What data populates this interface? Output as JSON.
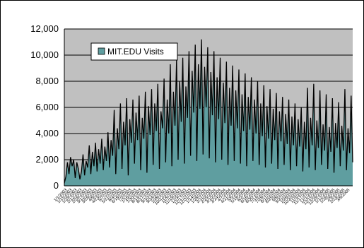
{
  "chart_data": {
    "type": "area",
    "title": "",
    "xlabel": "",
    "ylabel": "",
    "ylim": [
      0,
      12000
    ],
    "yticks": [
      "0",
      "2,000",
      "4,000",
      "6,000",
      "8,000",
      "10,000",
      "12,000"
    ],
    "grid": true,
    "legend_position": "top-left",
    "colors": {
      "plot_bg": "#c0c0c0",
      "area_fill": "#5f9ea0",
      "line": "#000000",
      "gridline": "#000000"
    },
    "series": [
      {
        "name": "MIT.EDU Visits",
        "values": [
          200,
          700,
          1800,
          900,
          2200,
          1500,
          2000,
          600,
          1800,
          1300,
          500,
          1100,
          2400,
          800,
          1900,
          1400,
          3100,
          900,
          2600,
          1500,
          3300,
          1100,
          2800,
          1700,
          3600,
          1200,
          3000,
          1900,
          4100,
          1400,
          3500,
          2300,
          5800,
          900,
          4400,
          2800,
          6300,
          1300,
          4900,
          3100,
          6700,
          800,
          5100,
          3300,
          6600,
          1700,
          5600,
          3500,
          6900,
          1200,
          5200,
          3600,
          7200,
          1000,
          6100,
          3900,
          7400,
          1600,
          6300,
          4200,
          7800,
          1300,
          5700,
          4400,
          8200,
          1800,
          6600,
          4000,
          9300,
          1500,
          7200,
          4600,
          9600,
          2000,
          8000,
          4900,
          9800,
          1700,
          7600,
          5200,
          10300,
          2300,
          8800,
          5600,
          10800,
          1900,
          9300,
          5900,
          11200,
          2400,
          9100,
          6000,
          10600,
          2100,
          8700,
          5400,
          10300,
          1800,
          8300,
          5100,
          9800,
          2000,
          7900,
          4800,
          9500,
          1600,
          7500,
          4600,
          9200,
          1900,
          7300,
          4400,
          8900,
          1700,
          7000,
          4200,
          8600,
          1500,
          6800,
          4300,
          8300,
          1900,
          6600,
          4000,
          8000,
          1600,
          6300,
          3800,
          7700,
          1400,
          6100,
          3600,
          7400,
          1700,
          5900,
          3500,
          7100,
          1300,
          5700,
          3400,
          6800,
          1600,
          5500,
          3200,
          6600,
          1200,
          5300,
          3100,
          6300,
          1500,
          5100,
          3000,
          6000,
          1100,
          4900,
          2800,
          7500,
          1400,
          5200,
          3100,
          7800,
          1200,
          5000,
          2900,
          7300,
          1600,
          4700,
          2700,
          7000,
          1300,
          4500,
          2600,
          6700,
          1000,
          4800,
          2900,
          6400,
          1500,
          4600,
          2700,
          7400,
          1200,
          4400,
          2500,
          6900,
          1800
        ]
      }
    ],
    "x_labels": [
      "1/1/2003",
      "1/15/2003",
      "1/29/2003",
      "2/12/2003",
      "2/26/2003",
      "3/12/2003",
      "3/26/2003",
      "4/9/2003",
      "4/23/2003",
      "5/7/2003",
      "5/21/2003",
      "6/4/2003",
      "6/18/2003",
      "7/2/2003",
      "7/16/2003",
      "7/30/2003",
      "8/13/2003",
      "8/27/2003",
      "9/10/2003",
      "9/24/2003",
      "10/8/2003",
      "10/22/2003",
      "11/5/2003",
      "11/19/2003",
      "12/3/2003",
      "12/17/2003",
      "12/31/2003",
      "1/14/2004",
      "1/28/2004",
      "2/11/2004",
      "2/25/2004",
      "3/10/2004",
      "3/24/2004",
      "4/7/2004",
      "4/21/2004",
      "5/5/2004",
      "5/19/2004",
      "6/2/2004",
      "6/16/2004",
      "6/30/2004",
      "7/14/2004",
      "7/28/2004",
      "8/11/2004",
      "8/25/2004",
      "9/8/2004",
      "9/22/2004",
      "10/6/2004",
      "10/20/2004",
      "11/3/2004",
      "11/17/2004",
      "12/1/2004",
      "12/15/2004",
      "12/29/2004",
      "1/12/2005",
      "1/26/2005",
      "2/9/2005",
      "2/23/2005",
      "3/9/2005"
    ]
  }
}
